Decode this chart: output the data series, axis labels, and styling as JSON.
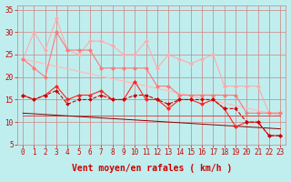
{
  "background_color": "#c0eeee",
  "grid_color": "#d08080",
  "xlabel": "Vent moyen/en rafales ( km/h )",
  "xlim": [
    -0.5,
    23.5
  ],
  "ylim": [
    5,
    36
  ],
  "yticks": [
    5,
    10,
    15,
    20,
    25,
    30,
    35
  ],
  "xticks": [
    0,
    1,
    2,
    3,
    4,
    5,
    6,
    7,
    8,
    9,
    10,
    11,
    12,
    13,
    14,
    15,
    16,
    17,
    18,
    19,
    20,
    21,
    22,
    23
  ],
  "line_light_pink_x": [
    0,
    1,
    2,
    3,
    4,
    5,
    6,
    7,
    8,
    9,
    10,
    11,
    12,
    13,
    14,
    15,
    16,
    17,
    18,
    19,
    20,
    21,
    22,
    23
  ],
  "line_light_pink_y": [
    24,
    30,
    26,
    33,
    26,
    25,
    28,
    28,
    27,
    25,
    25,
    28,
    22,
    25,
    24,
    23,
    24,
    25,
    18,
    18,
    18,
    18,
    12,
    12
  ],
  "line_med_pink_x": [
    0,
    1,
    2,
    3,
    4,
    5,
    6,
    7,
    8,
    9,
    10,
    11,
    12,
    13,
    14,
    15,
    16,
    17,
    18,
    19,
    20,
    21,
    22,
    23
  ],
  "line_med_pink_y": [
    24,
    22,
    20,
    30,
    26,
    26,
    26,
    22,
    22,
    22,
    22,
    22,
    18,
    18,
    16,
    16,
    16,
    16,
    16,
    16,
    12,
    12,
    12,
    12
  ],
  "line_bright_red_x": [
    0,
    1,
    2,
    3,
    4,
    5,
    6,
    7,
    8,
    9,
    10,
    11,
    12,
    13,
    14,
    15,
    16,
    17,
    18,
    19,
    20,
    21,
    22,
    23
  ],
  "line_bright_red_y": [
    16,
    15,
    16,
    18,
    15,
    16,
    16,
    17,
    15,
    15,
    19,
    15,
    15,
    13,
    15,
    15,
    14,
    15,
    13,
    9,
    10,
    10,
    7,
    7
  ],
  "line_dark_red_x": [
    0,
    1,
    2,
    3,
    4,
    5,
    6,
    7,
    8,
    9,
    10,
    11,
    12,
    13,
    14,
    15,
    16,
    17,
    18,
    19,
    20,
    21,
    22,
    23
  ],
  "line_dark_red_y": [
    16,
    15,
    16,
    17,
    14,
    15,
    15,
    16,
    15,
    15,
    16,
    16,
    15,
    14,
    15,
    15,
    15,
    15,
    13,
    13,
    10,
    10,
    7,
    7
  ],
  "trend1_x": [
    0,
    23
  ],
  "trend1_y": [
    24.0,
    11.5
  ],
  "trend2_x": [
    0,
    23
  ],
  "trend2_y": [
    11.5,
    11.5
  ],
  "trend3_x": [
    0,
    23
  ],
  "trend3_y": [
    12.0,
    8.5
  ],
  "font_color": "#cc0000",
  "tick_fontsize": 5.5,
  "label_fontsize": 7
}
